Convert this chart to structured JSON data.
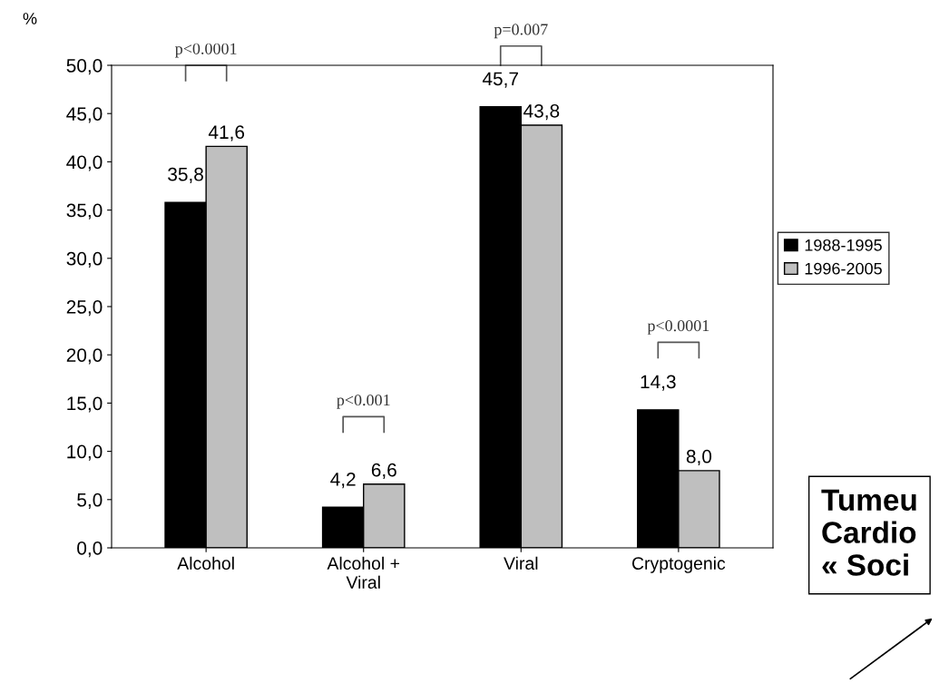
{
  "chart_data": {
    "type": "bar",
    "ylabel": "%",
    "categories": [
      "Alcohol",
      "Alcohol +\nViral",
      "Viral",
      "Cryptogenic"
    ],
    "series": [
      {
        "name": "1988-1995",
        "color": "#000000",
        "values": [
          35.8,
          4.2,
          45.7,
          14.3
        ],
        "value_labels": [
          "35,8",
          "4,2",
          "45,7",
          "14,3"
        ]
      },
      {
        "name": "1996-2005",
        "color": "#bfbfbf",
        "values": [
          41.6,
          6.6,
          43.8,
          8.0
        ],
        "value_labels": [
          "41,6",
          "6,6",
          "43,8",
          "8,0"
        ]
      }
    ],
    "ylim": [
      0,
      50
    ],
    "yticks": [
      {
        "value": 0,
        "label": "0,0"
      },
      {
        "value": 5,
        "label": "5,0"
      },
      {
        "value": 10,
        "label": "10,0"
      },
      {
        "value": 15,
        "label": "15,0"
      },
      {
        "value": 20,
        "label": "20,0"
      },
      {
        "value": 25,
        "label": "25,0"
      },
      {
        "value": 30,
        "label": "30,0"
      },
      {
        "value": 35,
        "label": "35,0"
      },
      {
        "value": 40,
        "label": "40,0"
      },
      {
        "value": 45,
        "label": "45,0"
      },
      {
        "value": 50,
        "label": "50,0"
      }
    ],
    "grid": false,
    "legend": "right",
    "annotations": [
      "p<0.0001",
      "p<0.001",
      "p=0.007",
      "p<0.0001",
      "Tumeu\nCardio\n« Soci"
    ]
  }
}
